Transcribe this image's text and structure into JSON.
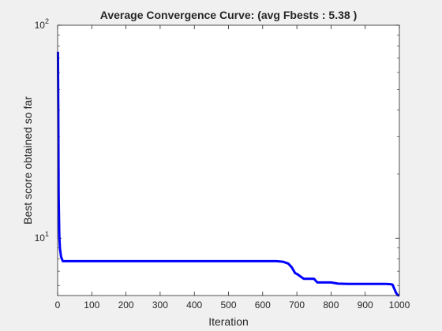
{
  "chart_data": {
    "type": "line",
    "title": "Average Convergence Curve: (avg Fbests : 5.38 )",
    "xlabel": "Iteration",
    "ylabel": "Best score obtained so far",
    "xlim": [
      0,
      1000
    ],
    "ylim": [
      5.38,
      100
    ],
    "yscale": "log",
    "grid": false,
    "x_ticks": [
      "0",
      "100",
      "200",
      "300",
      "400",
      "500",
      "600",
      "700",
      "800",
      "900",
      "1000"
    ],
    "y_ticks": [
      {
        "base": "10",
        "exp": "2",
        "value": 100
      },
      {
        "base": "10",
        "exp": "1",
        "value": 10
      }
    ],
    "line_color": "#0000ff",
    "series": [
      {
        "x": [
          1,
          2,
          3,
          5,
          7,
          10,
          15,
          50,
          100,
          200,
          300,
          400,
          500,
          600,
          640,
          660,
          675,
          685,
          695,
          700,
          720,
          750,
          760,
          800,
          820,
          850,
          900,
          960,
          975,
          980,
          985,
          990,
          995,
          1000
        ],
        "y": [
          75,
          38,
          16,
          10.2,
          8.9,
          8.2,
          7.8,
          7.8,
          7.8,
          7.8,
          7.8,
          7.8,
          7.8,
          7.8,
          7.8,
          7.75,
          7.6,
          7.3,
          6.85,
          6.8,
          6.45,
          6.45,
          6.2,
          6.2,
          6.12,
          6.1,
          6.1,
          6.1,
          6.08,
          6.05,
          5.8,
          5.55,
          5.4,
          5.38
        ]
      }
    ]
  }
}
